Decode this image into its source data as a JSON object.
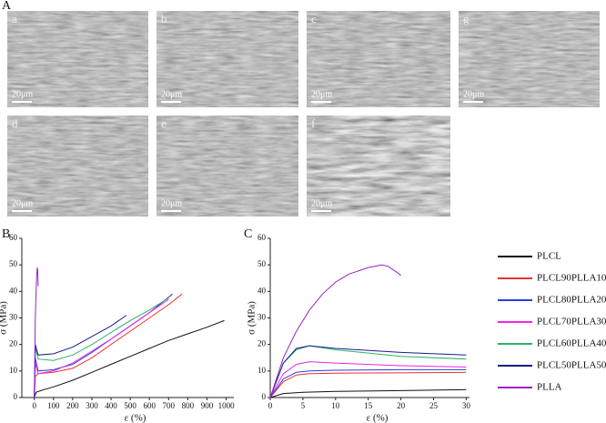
{
  "figure": {
    "panel_labels": [
      "A",
      "B",
      "C"
    ],
    "images": [
      {
        "label": "a",
        "scale": "20μm"
      },
      {
        "label": "b",
        "scale": "20μm"
      },
      {
        "label": "c",
        "scale": "20μm"
      },
      {
        "label": "g",
        "scale": "20μm"
      },
      {
        "label": "d",
        "scale": "20μm"
      },
      {
        "label": "e",
        "scale": "20μm"
      },
      {
        "label": "f",
        "scale": "20μm"
      }
    ]
  },
  "chart_data": [
    {
      "type": "line",
      "xlabel": "ε (%)",
      "ylabel": "σ (MPa)",
      "xlim": [
        -65,
        1040
      ],
      "ylim": [
        0,
        60
      ],
      "xticks": [
        0,
        100,
        200,
        300,
        400,
        500,
        600,
        700,
        800,
        900,
        1000
      ],
      "yticks": [
        0,
        10,
        20,
        30,
        40,
        50,
        60
      ],
      "series": [
        {
          "color": "#111111",
          "x": [
            0,
            10,
            50,
            100,
            200,
            300,
            400,
            500,
            600,
            700,
            800,
            900,
            990
          ],
          "values": [
            0,
            2,
            3,
            4,
            6.5,
            9.5,
            12.5,
            15.5,
            18.5,
            21.5,
            24,
            26.5,
            29
          ]
        },
        {
          "color": "#e8322f",
          "x": [
            0,
            5,
            20,
            100,
            200,
            300,
            400,
            500,
            600,
            700,
            770
          ],
          "values": [
            0,
            8,
            9,
            9.5,
            11,
            15,
            20,
            25,
            30,
            35,
            39
          ]
        },
        {
          "color": "#2b3fe0",
          "x": [
            0,
            5,
            20,
            100,
            200,
            300,
            400,
            500,
            600,
            720
          ],
          "values": [
            0,
            15,
            10,
            10.5,
            12.5,
            17,
            22,
            27,
            32,
            39
          ]
        },
        {
          "color": "#ee22ee",
          "x": [
            0,
            5,
            20,
            100,
            200,
            300,
            400,
            500,
            600,
            700
          ],
          "values": [
            0,
            13,
            9,
            10,
            13,
            17.5,
            22,
            27,
            32,
            37
          ]
        },
        {
          "color": "#2bb36b",
          "x": [
            0,
            5,
            20,
            100,
            200,
            300,
            400,
            500,
            600,
            700
          ],
          "values": [
            0,
            19,
            14.5,
            14,
            16,
            20,
            24.5,
            29,
            33,
            37.5
          ]
        },
        {
          "color": "#1b1b8c",
          "x": [
            0,
            5,
            20,
            100,
            200,
            300,
            400,
            480
          ],
          "values": [
            0,
            20,
            16,
            16.5,
            19,
            23,
            27,
            31
          ]
        },
        {
          "color": "#9b22c9",
          "x": [
            0,
            5,
            12,
            15,
            18,
            20
          ],
          "values": [
            0,
            30,
            45,
            49,
            48,
            42
          ]
        }
      ]
    },
    {
      "type": "line",
      "xlabel": "ε (%)",
      "ylabel": "σ (MPa)",
      "xlim": [
        0,
        30.5
      ],
      "ylim": [
        0,
        60
      ],
      "xticks": [
        0,
        5,
        10,
        15,
        20,
        25,
        30
      ],
      "yticks": [
        0,
        10,
        20,
        30,
        40,
        50,
        60
      ],
      "series": [
        {
          "name": "PLCL",
          "color": "#111111",
          "x": [
            0,
            2,
            5,
            10,
            20,
            30
          ],
          "values": [
            0,
            1.5,
            2,
            2.3,
            2.6,
            3
          ]
        },
        {
          "name": "PLCL90PLLA10",
          "color": "#e8322f",
          "x": [
            0,
            2,
            4,
            6,
            10,
            20,
            30
          ],
          "values": [
            0,
            6,
            8.5,
            9,
            9.2,
            9.3,
            9.5
          ]
        },
        {
          "name": "PLCL80PLLA20",
          "color": "#2b3fe0",
          "x": [
            0,
            2,
            4,
            6,
            10,
            20,
            30
          ],
          "values": [
            0,
            7,
            9.5,
            10,
            10.3,
            10.5,
            10.5
          ]
        },
        {
          "name": "PLCL70PLLA30",
          "color": "#ee22ee",
          "x": [
            0,
            2,
            4,
            6,
            10,
            20,
            30
          ],
          "values": [
            0,
            9,
            12.5,
            13.5,
            13,
            12,
            11.5
          ]
        },
        {
          "name": "PLCL60PLLA40",
          "color": "#2bb36b",
          "x": [
            0,
            2,
            4,
            6,
            10,
            20,
            30
          ],
          "values": [
            0,
            13,
            18,
            19.5,
            18,
            15.5,
            14.5
          ]
        },
        {
          "name": "PLCL50PLLA50",
          "color": "#1b1b8c",
          "x": [
            0,
            2,
            4,
            6,
            10,
            20,
            30
          ],
          "values": [
            0,
            13,
            18.5,
            19.5,
            18.5,
            17,
            16
          ]
        },
        {
          "name": "PLLA",
          "color": "#9b22c9",
          "x": [
            0,
            2,
            4,
            6,
            8,
            10,
            12,
            15,
            17,
            18,
            19.5,
            20
          ],
          "values": [
            0,
            15,
            25,
            33,
            39,
            43.5,
            46.5,
            49,
            50,
            49.5,
            47,
            46
          ]
        }
      ]
    }
  ]
}
